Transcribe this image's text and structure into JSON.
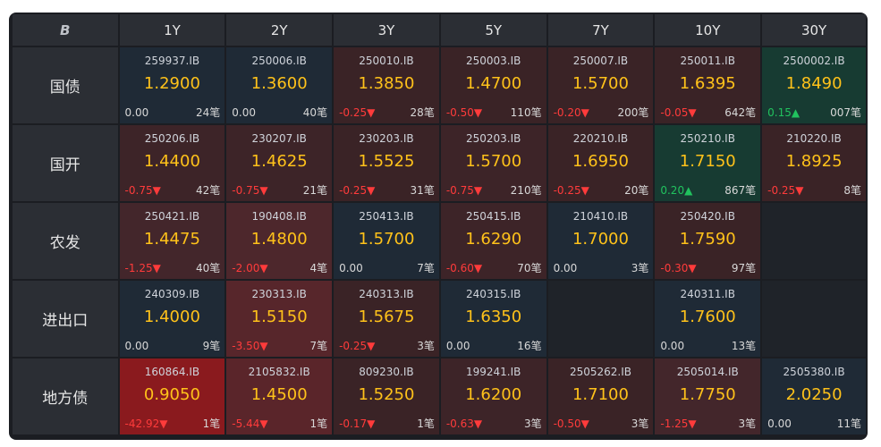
{
  "header": {
    "logo": "B",
    "tenors": [
      "1Y",
      "2Y",
      "3Y",
      "5Y",
      "7Y",
      "10Y",
      "30Y"
    ]
  },
  "colors": {
    "down": "#ff3b3b",
    "up": "#21c25e",
    "rate": "#ffc21a"
  },
  "rows": [
    {
      "label": "国债",
      "cells": [
        {
          "code": "259937.IB",
          "rate": "1.2900",
          "change": "0.00",
          "dir": "flat",
          "count": "24笔",
          "bg": "#1f2a36"
        },
        {
          "code": "250006.IB",
          "rate": "1.3600",
          "change": "0.00",
          "dir": "flat",
          "count": "40笔",
          "bg": "#1f2a36"
        },
        {
          "code": "250010.IB",
          "rate": "1.3850",
          "change": "-0.25▼",
          "dir": "down",
          "count": "28笔",
          "bg": "#3a2326"
        },
        {
          "code": "250003.IB",
          "rate": "1.4700",
          "change": "-0.50▼",
          "dir": "down",
          "count": "110笔",
          "bg": "#3a2326"
        },
        {
          "code": "250007.IB",
          "rate": "1.5700",
          "change": "-0.20▼",
          "dir": "down",
          "count": "200笔",
          "bg": "#3a2326"
        },
        {
          "code": "250011.IB",
          "rate": "1.6395",
          "change": "-0.05▼",
          "dir": "down",
          "count": "642笔",
          "bg": "#3a2326"
        },
        {
          "code": "2500002.IB",
          "rate": "1.8490",
          "change": "0.15▲",
          "dir": "up",
          "count": "007笔",
          "bg": "#173b32"
        }
      ]
    },
    {
      "label": "国开",
      "cells": [
        {
          "code": "250206.IB",
          "rate": "1.4400",
          "change": "-0.75▼",
          "dir": "down",
          "count": "42笔",
          "bg": "#3d2428"
        },
        {
          "code": "230207.IB",
          "rate": "1.4625",
          "change": "-0.75▼",
          "dir": "down",
          "count": "21笔",
          "bg": "#3d2428"
        },
        {
          "code": "230203.IB",
          "rate": "1.5525",
          "change": "-0.25▼",
          "dir": "down",
          "count": "31笔",
          "bg": "#3a2326"
        },
        {
          "code": "250203.IB",
          "rate": "1.5700",
          "change": "-0.75▼",
          "dir": "down",
          "count": "210笔",
          "bg": "#3d2428"
        },
        {
          "code": "220210.IB",
          "rate": "1.6950",
          "change": "-0.25▼",
          "dir": "down",
          "count": "20笔",
          "bg": "#3a2326"
        },
        {
          "code": "250210.IB",
          "rate": "1.7150",
          "change": "0.20▲",
          "dir": "up",
          "count": "867笔",
          "bg": "#173b32"
        },
        {
          "code": "210220.IB",
          "rate": "1.8925",
          "change": "-0.25▼",
          "dir": "down",
          "count": "8笔",
          "bg": "#3a2326"
        }
      ]
    },
    {
      "label": "农发",
      "cells": [
        {
          "code": "250421.IB",
          "rate": "1.4475",
          "change": "-1.25▼",
          "dir": "down",
          "count": "40笔",
          "bg": "#43262b"
        },
        {
          "code": "190408.IB",
          "rate": "1.4800",
          "change": "-2.00▼",
          "dir": "down",
          "count": "4笔",
          "bg": "#4d272c"
        },
        {
          "code": "250413.IB",
          "rate": "1.5700",
          "change": "0.00",
          "dir": "flat",
          "count": "7笔",
          "bg": "#1f2a36"
        },
        {
          "code": "250415.IB",
          "rate": "1.6290",
          "change": "-0.60▼",
          "dir": "down",
          "count": "70笔",
          "bg": "#3d2428"
        },
        {
          "code": "210410.IB",
          "rate": "1.7000",
          "change": "0.00",
          "dir": "flat",
          "count": "3笔",
          "bg": "#1f2a36"
        },
        {
          "code": "250420.IB",
          "rate": "1.7590",
          "change": "-0.30▼",
          "dir": "down",
          "count": "97笔",
          "bg": "#3a2326"
        },
        null
      ]
    },
    {
      "label": "进出口",
      "cells": [
        {
          "code": "240309.IB",
          "rate": "1.4000",
          "change": "0.00",
          "dir": "flat",
          "count": "9笔",
          "bg": "#1f2a36"
        },
        {
          "code": "230313.IB",
          "rate": "1.5150",
          "change": "-3.50▼",
          "dir": "down",
          "count": "7笔",
          "bg": "#57262b"
        },
        {
          "code": "240313.IB",
          "rate": "1.5675",
          "change": "-0.25▼",
          "dir": "down",
          "count": "3笔",
          "bg": "#3a2326"
        },
        {
          "code": "240315.IB",
          "rate": "1.6350",
          "change": "0.00",
          "dir": "flat",
          "count": "16笔",
          "bg": "#1f2a36"
        },
        null,
        {
          "code": "240311.IB",
          "rate": "1.7600",
          "change": "0.00",
          "dir": "flat",
          "count": "13笔",
          "bg": "#1f2a36"
        },
        null
      ]
    },
    {
      "label": "地方债",
      "cells": [
        {
          "code": "160864.IB",
          "rate": "0.9050",
          "change": "-42.92▼",
          "dir": "down",
          "count": "1笔",
          "bg": "#8a1a1e"
        },
        {
          "code": "2105832.IB",
          "rate": "1.4500",
          "change": "-5.44▼",
          "dir": "down",
          "count": "1笔",
          "bg": "#5a252a"
        },
        {
          "code": "809230.IB",
          "rate": "1.5250",
          "change": "-0.17▼",
          "dir": "down",
          "count": "1笔",
          "bg": "#3a2326"
        },
        {
          "code": "199241.IB",
          "rate": "1.6200",
          "change": "-0.63▼",
          "dir": "down",
          "count": "3笔",
          "bg": "#3d2428"
        },
        {
          "code": "2505262.IB",
          "rate": "1.7100",
          "change": "-0.50▼",
          "dir": "down",
          "count": "3笔",
          "bg": "#3a2326"
        },
        {
          "code": "2505014.IB",
          "rate": "1.7750",
          "change": "-1.25▼",
          "dir": "down",
          "count": "3笔",
          "bg": "#43262b"
        },
        {
          "code": "2505380.IB",
          "rate": "2.0250",
          "change": "0.00",
          "dir": "flat",
          "count": "11笔",
          "bg": "#1f2a36"
        }
      ]
    }
  ]
}
